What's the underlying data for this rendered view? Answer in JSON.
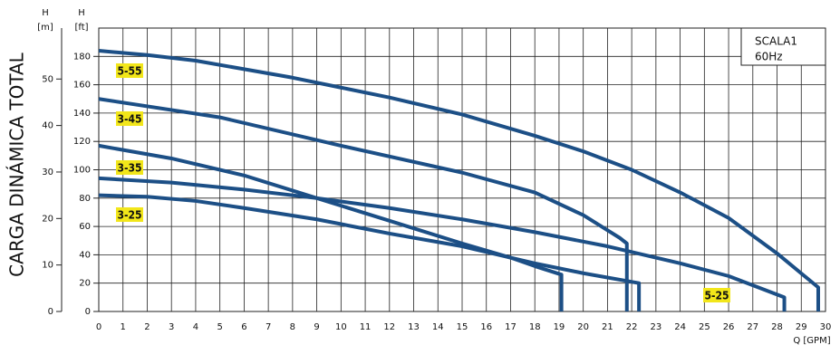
{
  "chart_data": {
    "type": "line",
    "y_axis_title": "H",
    "y_axis_unit": "[ft]",
    "y2_axis_title": "H",
    "y2_axis_unit": "[m]",
    "ylabel": "CARGA DINÁMICA TOTAL",
    "xlabel": "Q [GPM]",
    "annotations": [
      "SCALA1",
      "60Hz"
    ],
    "xlim": [
      0,
      30
    ],
    "xticks": [
      0,
      1,
      2,
      3,
      4,
      5,
      6,
      7,
      8,
      9,
      10,
      11,
      12,
      13,
      14,
      15,
      16,
      17,
      18,
      19,
      20,
      21,
      22,
      23,
      24,
      25,
      26,
      27,
      28,
      29,
      30
    ],
    "ylim": [
      0,
      200
    ],
    "yticks": [
      0,
      20,
      40,
      60,
      80,
      100,
      120,
      140,
      160,
      180
    ],
    "y2lim": [
      0,
      60.96
    ],
    "y2ticks": [
      0,
      10,
      20,
      30,
      40,
      50
    ],
    "grid": true,
    "series": [
      {
        "name": "5-55",
        "color": "#1c4f86",
        "x": [
          0,
          2,
          4,
          6,
          8,
          10,
          12,
          15,
          18,
          20,
          22,
          24,
          26,
          28,
          29.7,
          29.7
        ],
        "values": [
          184,
          181,
          177,
          171,
          165,
          158,
          151,
          139,
          124,
          113,
          100,
          84,
          66,
          41,
          17,
          0
        ]
      },
      {
        "name": "3-45",
        "color": "#1c4f86",
        "x": [
          0,
          5,
          10,
          15,
          18,
          20,
          21.5,
          21.8,
          21.8
        ],
        "values": [
          150,
          137,
          117,
          98,
          84,
          68,
          52,
          48,
          0
        ]
      },
      {
        "name": "3-35",
        "color": "#1c4f86",
        "x": [
          0,
          3,
          6,
          9,
          12,
          15,
          17,
          18,
          19.1,
          19.1
        ],
        "values": [
          117,
          108,
          96,
          80,
          64,
          48,
          38,
          32,
          26,
          0
        ]
      },
      {
        "name": "3-25",
        "color": "#1c4f86",
        "x": [
          0,
          2,
          4,
          6,
          9,
          12,
          15,
          18,
          20,
          22.3,
          22.3
        ],
        "values": [
          82,
          81,
          78,
          73,
          65,
          55,
          46,
          34,
          27,
          20,
          0
        ]
      },
      {
        "name": "5-25",
        "color": "#1c4f86",
        "x": [
          0,
          3,
          6,
          9,
          12,
          15,
          18,
          21,
          24,
          26,
          28.3,
          28.3
        ],
        "values": [
          94,
          91,
          86,
          80,
          73,
          65,
          56,
          46,
          34,
          25,
          10,
          0
        ]
      }
    ]
  }
}
